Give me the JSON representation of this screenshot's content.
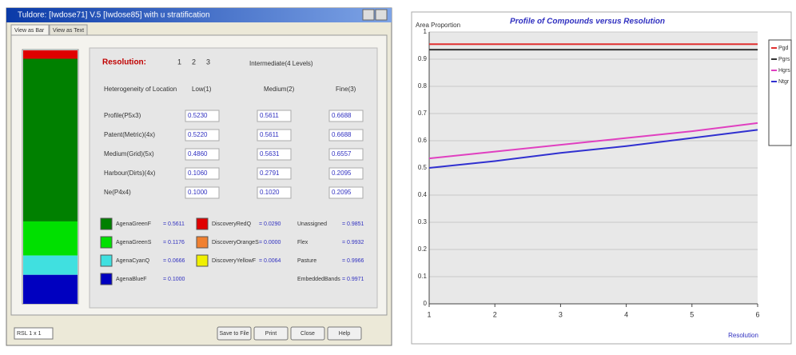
{
  "window": {
    "title": "Tuldore: [Iwdose71] V.5 [Iwdose85] with u stratification",
    "tabs": [
      "View as Bar",
      "View as Text"
    ],
    "resolution_label": "Resolution:",
    "resolution_options": [
      "1",
      "2",
      "3"
    ],
    "resolution_value": "Intermediate(4 Levels)",
    "table": {
      "header": [
        "Heterogeneity of Location",
        "Low(1)",
        "Medium(2)",
        "Fine(3)"
      ],
      "rows": [
        [
          "Profile(P5x3)",
          "0.5230",
          "0.5611",
          "0.6688"
        ],
        [
          "Patent(Metric)(4x)",
          "0.5220",
          "0.5611",
          "0.6688"
        ],
        [
          "Medium(Grid)(5x)",
          "0.4860",
          "0.5631",
          "0.6557"
        ],
        [
          "Harbour(Dirts)(4x)",
          "0.1060",
          "0.2791",
          "0.2095"
        ],
        [
          "Ne(P4x4)",
          "0.1000",
          "0.1020",
          "0.2095"
        ]
      ]
    },
    "classes": [
      {
        "name": "AgenaGreenF",
        "color": "#008000",
        "value": 0.5611,
        "value_label": "= 0.5611"
      },
      {
        "name": "AgenaGreenS",
        "color": "#00e000",
        "value": 0.1176,
        "value_label": "= 0.1176"
      },
      {
        "name": "AgenaCyanQ",
        "color": "#40e0e0",
        "value": 0.0666,
        "value_label": "= 0.0666"
      },
      {
        "name": "AgenaBlueF",
        "color": "#0000c0",
        "value": 0.1,
        "value_label": "= 0.1000"
      },
      {
        "name": "DiscoveryRedQ",
        "color": "#e00000",
        "value": 0.029,
        "value_label": "= 0.0290"
      },
      {
        "name": "DiscoveryOrangeS",
        "color": "#f08030",
        "value": 0,
        "value_label": "= 0.0000"
      },
      {
        "name": "DiscoveryYellowF",
        "color": "#f0f000",
        "value": 0.0064,
        "value_label": "= 0.0064"
      }
    ],
    "stats": [
      {
        "name": "Unassigned",
        "value_label": "= 0.9851"
      },
      {
        "name": "Flex",
        "value_label": "= 0.9932"
      },
      {
        "name": "Pasture",
        "value_label": "= 0.9966"
      },
      {
        "name": "EmbeddedBands",
        "value_label": "= 0.9971"
      }
    ],
    "select": "RSL 1 x 1",
    "buttons": [
      "Save to File",
      "Print",
      "Close",
      "Help"
    ]
  },
  "chart_data": {
    "type": "line",
    "title": "Profile of Compounds versus Resolution",
    "y_label": "Area Proportion",
    "x_label": "Resolution",
    "x": [
      1,
      2,
      3,
      4,
      5,
      6
    ],
    "xlim": [
      1,
      6
    ],
    "xticks": [
      1,
      2,
      3,
      4,
      5,
      6
    ],
    "ylim": [
      0,
      1
    ],
    "yticks": [
      0,
      0.1,
      0.2,
      0.3,
      0.4,
      0.5,
      0.6,
      0.7,
      0.8,
      0.9,
      1
    ],
    "grid": true,
    "series": [
      {
        "name": "Pgd",
        "color": "#e03030",
        "values": [
          0.955,
          0.955,
          0.955,
          0.955,
          0.955,
          0.955
        ]
      },
      {
        "name": "Pgrs",
        "color": "#333333",
        "values": [
          0.935,
          0.935,
          0.935,
          0.935,
          0.935,
          0.935
        ]
      },
      {
        "name": "Hgrs",
        "color": "#e040c0",
        "values": [
          0.535,
          0.56,
          0.585,
          0.61,
          0.635,
          0.665
        ]
      },
      {
        "name": "Ntgr",
        "color": "#3030d0",
        "values": [
          0.5,
          0.525,
          0.555,
          0.58,
          0.61,
          0.64
        ]
      }
    ]
  }
}
